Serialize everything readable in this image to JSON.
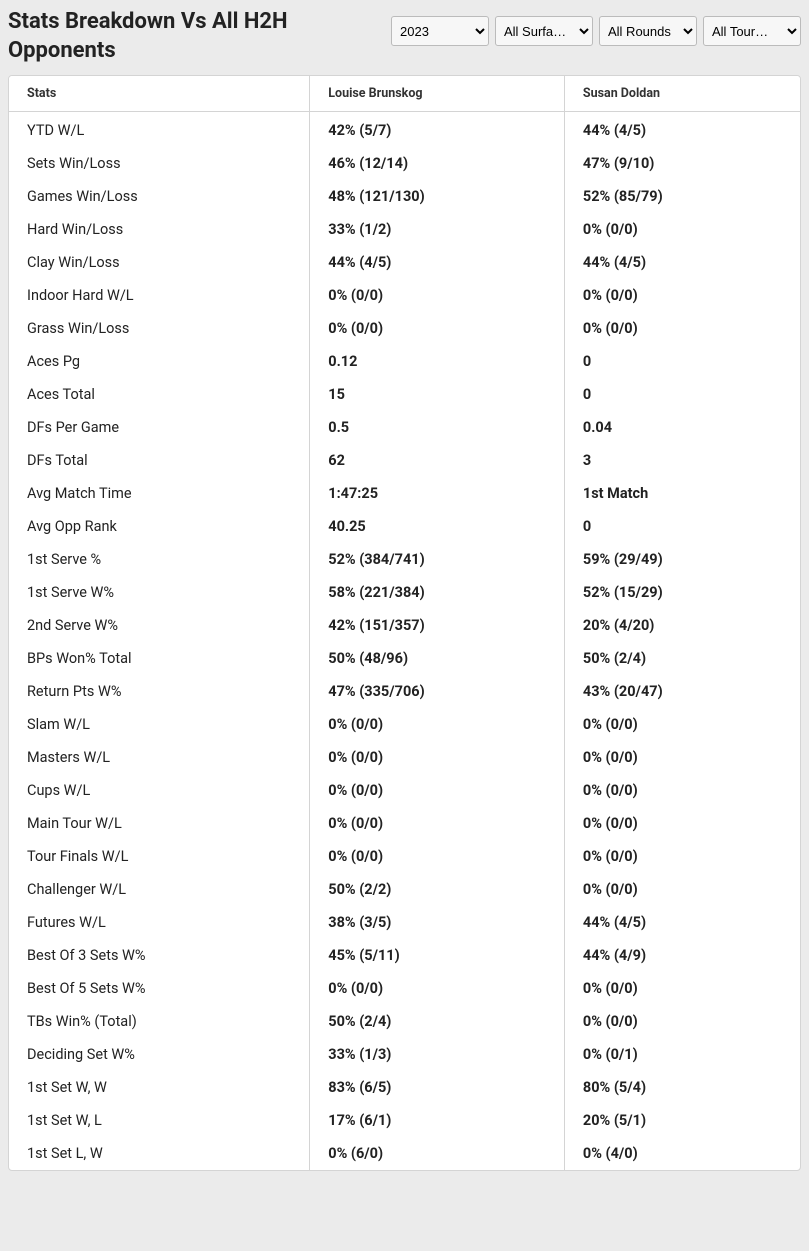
{
  "title": "Stats Breakdown Vs All H2H Opponents",
  "filters": {
    "year": {
      "selected": "2023",
      "options": [
        "2023"
      ]
    },
    "surface": {
      "selected": "All Surfa…",
      "options": [
        "All Surfa…"
      ]
    },
    "round": {
      "selected": "All Rounds",
      "options": [
        "All Rounds"
      ]
    },
    "tour": {
      "selected": "All Tour…",
      "options": [
        "All Tour…"
      ]
    }
  },
  "columns": [
    "Stats",
    "Louise Brunskog",
    "Susan Doldan"
  ],
  "rows": [
    {
      "label": "YTD W/L",
      "p1": "42% (5/7)",
      "p2": "44% (4/5)"
    },
    {
      "label": "Sets Win/Loss",
      "p1": "46% (12/14)",
      "p2": "47% (9/10)"
    },
    {
      "label": "Games Win/Loss",
      "p1": "48% (121/130)",
      "p2": "52% (85/79)"
    },
    {
      "label": "Hard Win/Loss",
      "p1": "33% (1/2)",
      "p2": "0% (0/0)"
    },
    {
      "label": "Clay Win/Loss",
      "p1": "44% (4/5)",
      "p2": "44% (4/5)"
    },
    {
      "label": "Indoor Hard W/L",
      "p1": "0% (0/0)",
      "p2": "0% (0/0)"
    },
    {
      "label": "Grass Win/Loss",
      "p1": "0% (0/0)",
      "p2": "0% (0/0)"
    },
    {
      "label": "Aces Pg",
      "p1": "0.12",
      "p2": "0"
    },
    {
      "label": "Aces Total",
      "p1": "15",
      "p2": "0"
    },
    {
      "label": "DFs Per Game",
      "p1": "0.5",
      "p2": "0.04"
    },
    {
      "label": "DFs Total",
      "p1": "62",
      "p2": "3"
    },
    {
      "label": "Avg Match Time",
      "p1": "1:47:25",
      "p2": "1st Match"
    },
    {
      "label": "Avg Opp Rank",
      "p1": "40.25",
      "p2": "0"
    },
    {
      "label": "1st Serve %",
      "p1": "52% (384/741)",
      "p2": "59% (29/49)"
    },
    {
      "label": "1st Serve W%",
      "p1": "58% (221/384)",
      "p2": "52% (15/29)"
    },
    {
      "label": "2nd Serve W%",
      "p1": "42% (151/357)",
      "p2": "20% (4/20)"
    },
    {
      "label": "BPs Won% Total",
      "p1": "50% (48/96)",
      "p2": "50% (2/4)"
    },
    {
      "label": "Return Pts W%",
      "p1": "47% (335/706)",
      "p2": "43% (20/47)"
    },
    {
      "label": "Slam W/L",
      "p1": "0% (0/0)",
      "p2": "0% (0/0)"
    },
    {
      "label": "Masters W/L",
      "p1": "0% (0/0)",
      "p2": "0% (0/0)"
    },
    {
      "label": "Cups W/L",
      "p1": "0% (0/0)",
      "p2": "0% (0/0)"
    },
    {
      "label": "Main Tour W/L",
      "p1": "0% (0/0)",
      "p2": "0% (0/0)"
    },
    {
      "label": "Tour Finals W/L",
      "p1": "0% (0/0)",
      "p2": "0% (0/0)"
    },
    {
      "label": "Challenger W/L",
      "p1": "50% (2/2)",
      "p2": "0% (0/0)"
    },
    {
      "label": "Futures W/L",
      "p1": "38% (3/5)",
      "p2": "44% (4/5)"
    },
    {
      "label": "Best Of 3 Sets W%",
      "p1": "45% (5/11)",
      "p2": "44% (4/9)"
    },
    {
      "label": "Best Of 5 Sets W%",
      "p1": "0% (0/0)",
      "p2": "0% (0/0)"
    },
    {
      "label": "TBs Win% (Total)",
      "p1": "50% (2/4)",
      "p2": "0% (0/0)"
    },
    {
      "label": "Deciding Set W%",
      "p1": "33% (1/3)",
      "p2": "0% (0/1)"
    },
    {
      "label": "1st Set W, W",
      "p1": "83% (6/5)",
      "p2": "80% (5/4)"
    },
    {
      "label": "1st Set W, L",
      "p1": "17% (6/1)",
      "p2": "20% (5/1)"
    },
    {
      "label": "1st Set L, W",
      "p1": "0% (6/0)",
      "p2": "0% (4/0)"
    }
  ]
}
